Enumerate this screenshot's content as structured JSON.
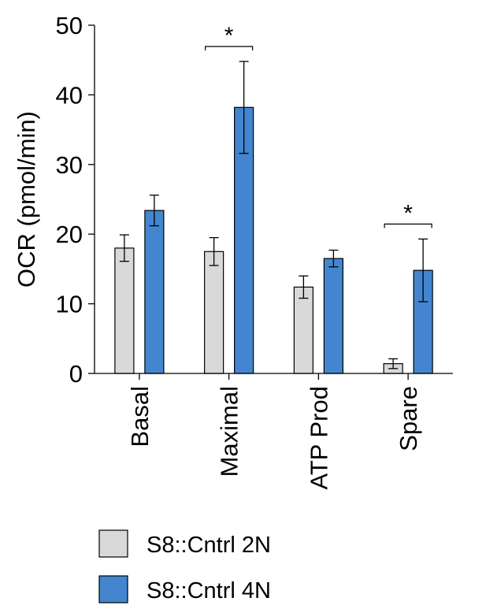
{
  "chart_data": {
    "type": "bar",
    "title": "",
    "xlabel": "",
    "ylabel": "OCR (pmol/min)",
    "ylim": [
      0,
      50
    ],
    "yticks": [
      0,
      10,
      20,
      30,
      40,
      50
    ],
    "categories": [
      "Basal",
      "Maximal",
      "ATP Prod",
      "Spare"
    ],
    "series": [
      {
        "name": "S8::Cntrl 2N",
        "color": "#d9d9d9",
        "values": [
          18.0,
          17.5,
          12.4,
          1.4
        ],
        "errors": [
          1.9,
          2.0,
          1.6,
          0.7
        ]
      },
      {
        "name": "S8::Cntrl 4N",
        "color": "#4386cf",
        "values": [
          23.4,
          38.2,
          16.5,
          14.8
        ],
        "errors": [
          2.2,
          6.6,
          1.2,
          4.5
        ]
      }
    ],
    "significance": [
      {
        "category": "Maximal",
        "label": "*"
      },
      {
        "category": "Spare",
        "label": "*"
      }
    ],
    "legend_position": "bottom-left",
    "grid": false
  }
}
